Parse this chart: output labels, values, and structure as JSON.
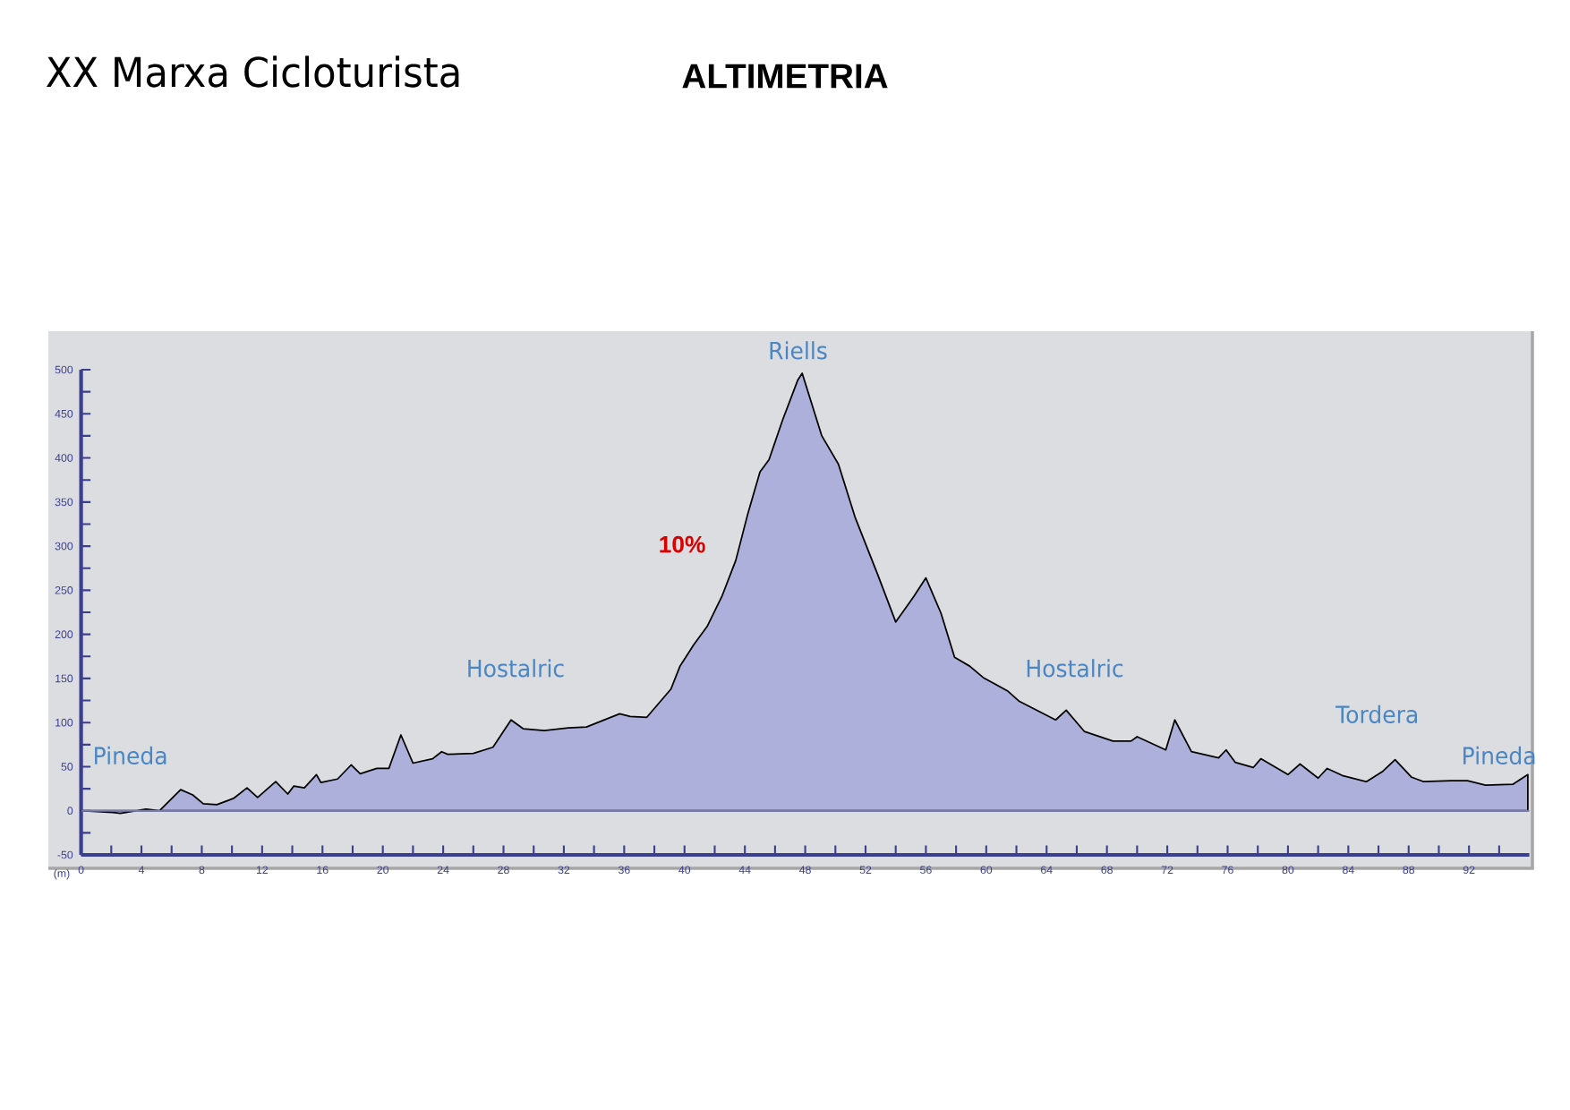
{
  "chart_data": {
    "type": "area",
    "title": "XX Marxa Cicloturista",
    "subtitle": "ALTIMETRIA",
    "ylabel": "(m)",
    "color": "#aeb0dc",
    "x": [
      0,
      2.1,
      2.6,
      4.3,
      5.2,
      6.6,
      7.4,
      8.1,
      9.0,
      10.1,
      11.0,
      11.7,
      12.9,
      13.7,
      14.1,
      14.8,
      15.6,
      15.9,
      17.0,
      17.9,
      18.5,
      19.6,
      20.4,
      21.2,
      22.0,
      23.3,
      23.9,
      24.3,
      26.0,
      27.3,
      28.5,
      29.3,
      30.7,
      32.3,
      33.5,
      35.7,
      36.4,
      37.5,
      39.1,
      39.7,
      40.6,
      41.5,
      42.5,
      43.4,
      44.2,
      45.0,
      45.6,
      46.5,
      47.5,
      47.8,
      49.1,
      50.2,
      51.3,
      52.8,
      54.0,
      55.2,
      56.0,
      57.0,
      57.9,
      58.9,
      59.8,
      61.4,
      62.2,
      64.6,
      65.3,
      66.5,
      68.4,
      69.6,
      70.0,
      71.9,
      72.5,
      73.6,
      75.4,
      75.9,
      76.5,
      77.7,
      78.2,
      80.0,
      80.8,
      82.0,
      82.6,
      83.6,
      85.2,
      86.3,
      87.1,
      88.2,
      89.0,
      90.8,
      91.9,
      93.1,
      94.9,
      95.9
    ],
    "values": [
      0,
      -2,
      -3,
      2,
      0,
      24,
      18,
      8,
      7,
      14,
      26,
      15,
      33,
      19,
      28,
      26,
      41,
      32,
      36,
      52,
      42,
      48,
      48,
      86,
      54,
      59,
      67,
      64,
      65,
      72,
      103,
      93,
      91,
      94,
      95,
      110,
      107,
      106,
      138,
      164,
      188,
      209,
      244,
      284,
      337,
      384,
      398,
      443,
      488,
      496,
      425,
      393,
      333,
      268,
      214,
      243,
      264,
      224,
      174,
      164,
      151,
      136,
      124,
      103,
      114,
      90,
      79,
      79,
      84,
      69,
      103,
      67,
      60,
      69,
      55,
      49,
      59,
      41,
      53,
      37,
      48,
      40,
      33,
      45,
      58,
      38,
      33,
      34,
      34,
      29,
      30,
      41
    ],
    "xlim": [
      0,
      96
    ],
    "xticks": [
      0,
      {
        "value": 2,
        "label": null
      },
      4,
      {
        "value": 6,
        "label": null
      },
      8,
      {
        "value": 10,
        "label": null
      },
      12,
      {
        "value": 14,
        "label": null
      },
      16,
      {
        "value": 18,
        "label": null
      },
      20,
      {
        "value": 22,
        "label": null
      },
      24,
      {
        "value": 26,
        "label": null
      },
      28,
      {
        "value": 30,
        "label": null
      },
      32,
      {
        "value": 34,
        "label": null
      },
      36,
      {
        "value": 38,
        "label": null
      },
      40,
      {
        "value": 42,
        "label": null
      },
      44,
      {
        "value": 46,
        "label": null
      },
      48,
      {
        "value": 50,
        "label": null
      },
      52,
      {
        "value": 54,
        "label": null
      },
      56,
      {
        "value": 58,
        "label": null
      },
      60,
      {
        "value": 62,
        "label": null
      },
      64,
      {
        "value": 66,
        "label": null
      },
      68,
      {
        "value": 70,
        "label": null
      },
      72,
      {
        "value": 74,
        "label": null
      },
      76,
      {
        "value": 78,
        "label": null
      },
      80,
      {
        "value": 82,
        "label": null
      },
      84,
      {
        "value": 86,
        "label": null
      },
      88,
      {
        "value": 90,
        "label": null
      },
      92,
      {
        "value": 94,
        "label": null
      }
    ],
    "ylim": [
      -50,
      500
    ],
    "yticks": [
      -50,
      {
        "value": -25,
        "label": null
      },
      0,
      {
        "value": 25,
        "label": null
      },
      50,
      {
        "value": 75,
        "label": null
      },
      100,
      {
        "value": 125,
        "label": null
      },
      150,
      {
        "value": 175,
        "label": null
      },
      200,
      {
        "value": 225,
        "label": null
      },
      250,
      {
        "value": 275,
        "label": null
      },
      300,
      {
        "value": 325,
        "label": null
      },
      350,
      {
        "value": 375,
        "label": null
      },
      400,
      {
        "value": 425,
        "label": null
      },
      450,
      {
        "value": 475,
        "label": null
      },
      500
    ],
    "ref_lines": [
      {
        "axis": "y",
        "value": 0,
        "color": "#7a7eb8"
      }
    ],
    "annotations": [
      "Pineda",
      "Hostalric",
      "Riells",
      "Hostalric",
      "Tordera",
      "Pineda",
      "10%"
    ]
  }
}
